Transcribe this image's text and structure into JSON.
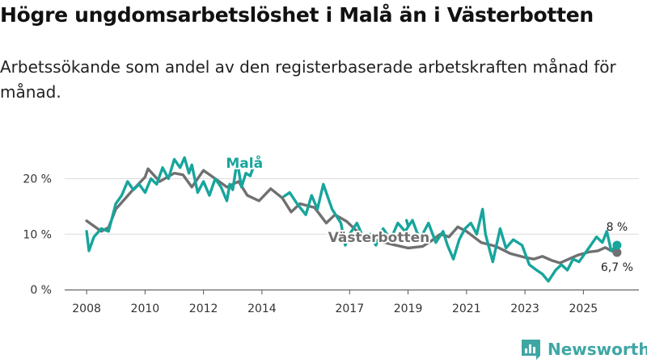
{
  "header": {
    "title": "Högre ungdomsarbetslöshet i Malå än i Västerbotten",
    "subtitle": "Arbetssökande som andel av den registerbaserade arbetskraften månad för månad."
  },
  "brand": {
    "name": "Newsworthy",
    "color": "#3fa6a4"
  },
  "chart_data": {
    "type": "line",
    "title": "Högre ungdomsarbetslöshet i Malå än i Västerbotten",
    "subtitle": "Arbetssökande som andel av den registerbaserade arbetskraften månad för månad.",
    "xlabel": "",
    "ylabel": "",
    "ylim": [
      0,
      27.5
    ],
    "xlim": [
      2007.25,
      2026.9
    ],
    "grid": true,
    "x_ticks": [
      {
        "value": 2008,
        "label": "2008"
      },
      {
        "value": 2010,
        "label": "2010"
      },
      {
        "value": 2012,
        "label": "2012"
      },
      {
        "value": 2014,
        "label": "2014"
      },
      {
        "value": 2017,
        "label": "2017"
      },
      {
        "value": 2019,
        "label": "2019"
      },
      {
        "value": 2021,
        "label": "2021"
      },
      {
        "value": 2023,
        "label": "2023"
      },
      {
        "value": 2025,
        "label": "2025"
      }
    ],
    "y_ticks": [
      {
        "value": 0,
        "label": "0 %"
      },
      {
        "value": 10,
        "label": "10 %"
      },
      {
        "value": 20,
        "label": "20 %"
      }
    ],
    "series": [
      {
        "name": "Västerbotten",
        "color": "#707070",
        "label": "Västerbotten",
        "label_at": [
          2018.0,
          8.6
        ],
        "end_label": "6,7 %",
        "points": [
          [
            2008.0,
            12.4
          ],
          [
            2008.5,
            10.5
          ],
          [
            2008.75,
            11.2
          ],
          [
            2009.0,
            14.5
          ],
          [
            2009.5,
            17.5
          ],
          [
            2010.0,
            20.3
          ],
          [
            2010.1,
            21.8
          ],
          [
            2010.5,
            19.5
          ],
          [
            2011.0,
            21.0
          ],
          [
            2011.3,
            20.7
          ],
          [
            2011.6,
            18.5
          ],
          [
            2012.0,
            21.5
          ],
          [
            2012.4,
            20.0
          ],
          [
            2012.8,
            18.5
          ],
          [
            2013.2,
            19.5
          ],
          [
            2013.5,
            17.0
          ],
          [
            2013.9,
            16.0
          ],
          [
            2014.3,
            18.2
          ],
          [
            2014.7,
            16.5
          ],
          [
            2015.0,
            14.0
          ],
          [
            2015.3,
            15.5
          ],
          [
            2015.8,
            14.8
          ],
          [
            2016.2,
            12.0
          ],
          [
            2016.5,
            13.5
          ],
          [
            2016.9,
            12.3
          ],
          [
            2017.3,
            10.3
          ],
          [
            2017.8,
            9.0
          ],
          [
            2018.5,
            8.1
          ],
          [
            2019.0,
            7.5
          ],
          [
            2019.5,
            7.8
          ],
          [
            2019.8,
            8.8
          ],
          [
            2020.1,
            10.0
          ],
          [
            2020.4,
            9.5
          ],
          [
            2020.7,
            11.3
          ],
          [
            2021.0,
            10.5
          ],
          [
            2021.5,
            8.5
          ],
          [
            2022.0,
            7.8
          ],
          [
            2022.5,
            6.5
          ],
          [
            2023.0,
            5.8
          ],
          [
            2023.3,
            5.5
          ],
          [
            2023.6,
            6.0
          ],
          [
            2023.9,
            5.3
          ],
          [
            2024.2,
            4.8
          ],
          [
            2024.5,
            5.5
          ],
          [
            2024.8,
            6.2
          ],
          [
            2025.2,
            6.8
          ],
          [
            2025.5,
            7.0
          ],
          [
            2025.75,
            7.6
          ],
          [
            2025.95,
            7.0
          ],
          [
            2026.15,
            6.7
          ]
        ]
      },
      {
        "name": "Malå",
        "color": "#17a59c",
        "label": "Malå",
        "label_at": [
          2013.4,
          22.0
        ],
        "end_label": "8 %",
        "points": [
          [
            2008.0,
            10.5
          ],
          [
            2008.08,
            7.0
          ],
          [
            2008.25,
            9.5
          ],
          [
            2008.5,
            11.0
          ],
          [
            2008.75,
            10.5
          ],
          [
            2009.0,
            15.5
          ],
          [
            2009.2,
            17.0
          ],
          [
            2009.4,
            19.5
          ],
          [
            2009.6,
            18.0
          ],
          [
            2009.8,
            19.0
          ],
          [
            2010.0,
            17.5
          ],
          [
            2010.2,
            20.0
          ],
          [
            2010.4,
            19.0
          ],
          [
            2010.6,
            22.0
          ],
          [
            2010.8,
            20.0
          ],
          [
            2011.0,
            23.5
          ],
          [
            2011.2,
            22.0
          ],
          [
            2011.35,
            23.8
          ],
          [
            2011.5,
            21.0
          ],
          [
            2011.6,
            22.5
          ],
          [
            2011.8,
            17.5
          ],
          [
            2012.0,
            19.5
          ],
          [
            2012.2,
            17.0
          ],
          [
            2012.4,
            20.0
          ],
          [
            2012.6,
            18.5
          ],
          [
            2012.8,
            16.0
          ],
          [
            2012.9,
            19.0
          ],
          [
            2013.0,
            18.0
          ],
          [
            2013.15,
            23.2
          ],
          [
            2013.3,
            18.5
          ],
          [
            2013.45,
            21.0
          ],
          [
            2013.6,
            20.5
          ],
          [
            2013.75,
            22.8
          ]
        ],
        "points_2": [
          [
            2014.75,
            16.8
          ],
          [
            2014.95,
            17.5
          ],
          [
            2015.2,
            15.5
          ],
          [
            2015.5,
            13.5
          ],
          [
            2015.7,
            17.0
          ],
          [
            2015.9,
            14.5
          ],
          [
            2016.1,
            19.0
          ],
          [
            2016.4,
            14.5
          ],
          [
            2016.7,
            12.0
          ],
          [
            2016.85,
            8.0
          ],
          [
            2017.0,
            10.0
          ],
          [
            2017.25,
            12.0
          ],
          [
            2017.5,
            9.0
          ],
          [
            2017.7,
            10.0
          ],
          [
            2017.9,
            8.0
          ],
          [
            2018.15,
            11.0
          ],
          [
            2018.4,
            9.0
          ],
          [
            2018.65,
            12.0
          ],
          [
            2018.9,
            10.5
          ],
          [
            2019.15,
            12.5
          ],
          [
            2019.4,
            9.0
          ],
          [
            2019.7,
            12.0
          ],
          [
            2019.95,
            8.5
          ],
          [
            2020.2,
            10.5
          ],
          [
            2020.35,
            8.0
          ],
          [
            2020.55,
            5.5
          ],
          [
            2020.75,
            9.0
          ],
          [
            2020.95,
            11.0
          ],
          [
            2021.15,
            12.0
          ],
          [
            2021.35,
            10.0
          ],
          [
            2021.55,
            14.5
          ],
          [
            2021.65,
            10.0
          ],
          [
            2021.9,
            5.0
          ],
          [
            2022.15,
            11.0
          ],
          [
            2022.35,
            7.5
          ],
          [
            2022.6,
            9.0
          ],
          [
            2022.9,
            8.0
          ],
          [
            2023.15,
            4.5
          ],
          [
            2023.4,
            3.5
          ],
          [
            2023.6,
            2.8
          ],
          [
            2023.8,
            1.5
          ],
          [
            2024.05,
            3.5
          ],
          [
            2024.25,
            4.5
          ],
          [
            2024.45,
            3.5
          ],
          [
            2024.65,
            5.5
          ],
          [
            2024.85,
            5.0
          ],
          [
            2025.05,
            6.5
          ],
          [
            2025.25,
            8.0
          ],
          [
            2025.45,
            9.5
          ],
          [
            2025.65,
            8.5
          ],
          [
            2025.8,
            10.5
          ],
          [
            2025.95,
            7.0
          ],
          [
            2026.15,
            8.0
          ]
        ],
        "points_3": [
          [
            2018.95,
            12.5
          ],
          [
            2019.0,
            11.5
          ]
        ]
      }
    ]
  }
}
